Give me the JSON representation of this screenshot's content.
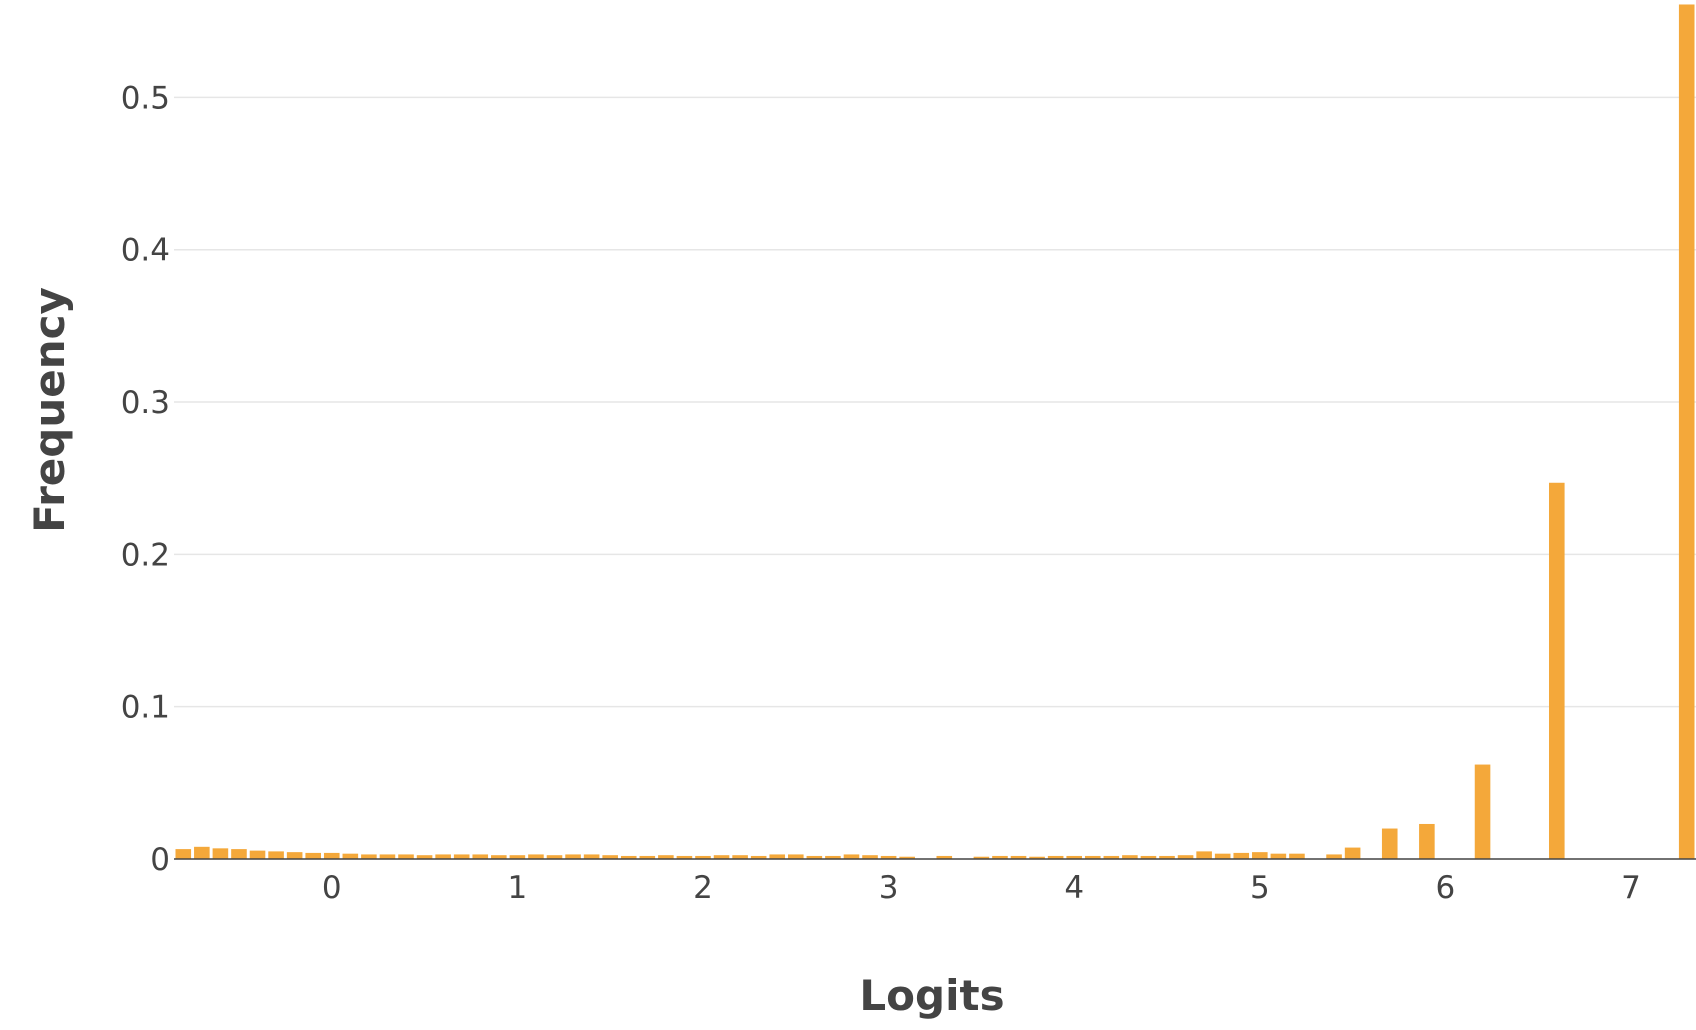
{
  "chart_data": {
    "type": "bar",
    "title": "",
    "xlabel": "Logits",
    "ylabel": "Frequency",
    "xlim": [
      -0.85,
      7.35
    ],
    "ylim": [
      0,
      0.56
    ],
    "x_ticks": [
      0,
      1,
      2,
      3,
      4,
      5,
      6,
      7
    ],
    "x_tick_labels": [
      "0",
      "1",
      "2",
      "3",
      "4",
      "5",
      "6",
      "7"
    ],
    "y_ticks": [
      0,
      0.1,
      0.2,
      0.3,
      0.4,
      0.5
    ],
    "y_tick_labels": [
      "0",
      "0.1",
      "0.2",
      "0.3",
      "0.4",
      "0.5"
    ],
    "grid": true,
    "legend": "none",
    "color": "#f4a83a",
    "bin_width": 0.1,
    "bin_starts": [
      -0.85,
      -0.75,
      -0.65,
      -0.55,
      -0.45,
      -0.35,
      -0.25,
      -0.15,
      -0.05,
      0.05,
      0.15,
      0.25,
      0.35,
      0.45,
      0.55,
      0.65,
      0.75,
      0.85,
      0.95,
      1.05,
      1.15,
      1.25,
      1.35,
      1.45,
      1.55,
      1.65,
      1.75,
      1.85,
      1.95,
      2.05,
      2.15,
      2.25,
      2.35,
      2.45,
      2.55,
      2.65,
      2.75,
      2.85,
      2.95,
      3.05,
      3.25,
      3.45,
      3.55,
      3.65,
      3.75,
      3.85,
      3.95,
      4.05,
      4.15,
      4.25,
      4.35,
      4.45,
      4.55,
      4.65,
      4.75,
      4.85,
      4.95,
      5.05,
      5.15,
      5.35,
      5.45,
      5.65,
      5.85,
      6.15,
      6.55,
      7.25
    ],
    "values": [
      0.0065,
      0.008,
      0.007,
      0.0065,
      0.0055,
      0.005,
      0.0045,
      0.004,
      0.004,
      0.0035,
      0.003,
      0.003,
      0.003,
      0.0025,
      0.003,
      0.003,
      0.003,
      0.0025,
      0.0025,
      0.003,
      0.0025,
      0.003,
      0.003,
      0.0025,
      0.002,
      0.002,
      0.0025,
      0.002,
      0.002,
      0.0025,
      0.0025,
      0.002,
      0.003,
      0.003,
      0.002,
      0.002,
      0.003,
      0.0025,
      0.002,
      0.0015,
      0.002,
      0.0015,
      0.002,
      0.002,
      0.0015,
      0.002,
      0.002,
      0.002,
      0.002,
      0.0025,
      0.002,
      0.002,
      0.0025,
      0.005,
      0.0035,
      0.004,
      0.0045,
      0.0035,
      0.0035,
      0.003,
      0.0075,
      0.02,
      0.023,
      0.062,
      0.247,
      0.561
    ]
  }
}
